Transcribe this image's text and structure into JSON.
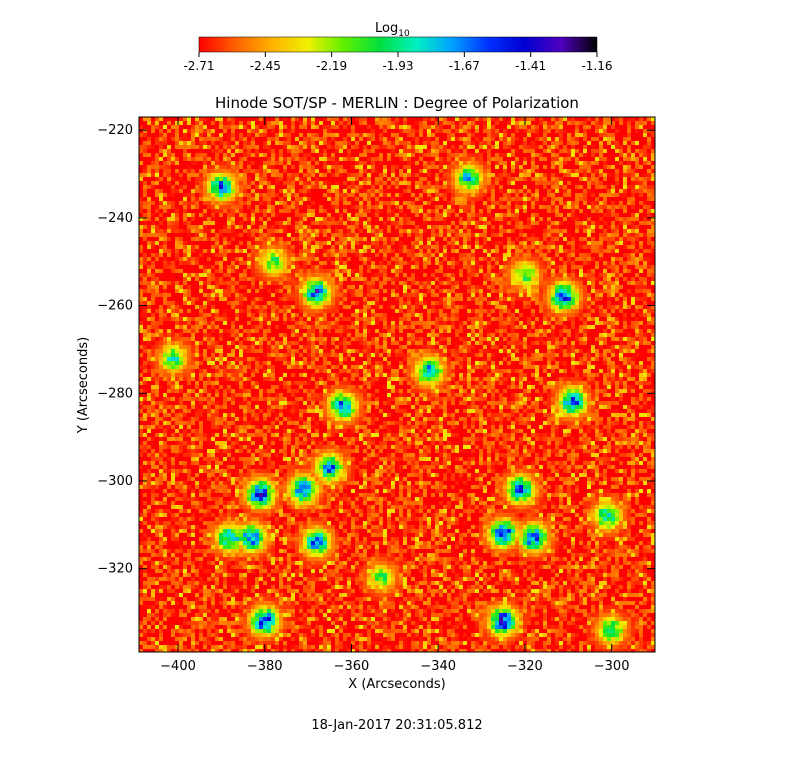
{
  "chart_data": {
    "type": "heatmap",
    "title": "Hinode SOT/SP - MERLIN : Degree of Polarization",
    "xlabel": "X (Arcseconds)",
    "ylabel": "Y (Arcseconds)",
    "xlim": [
      -409,
      -290
    ],
    "ylim": [
      -339,
      -217
    ],
    "x_ticks": [
      -400,
      -380,
      -360,
      -340,
      -320,
      -300
    ],
    "y_ticks": [
      -220,
      -240,
      -260,
      -280,
      -300,
      -320
    ],
    "colorbar": {
      "label_main": "Log",
      "label_sub": "10",
      "range": [
        -2.71,
        -1.16
      ],
      "ticks": [
        "-2.71",
        "-2.45",
        "-2.19",
        "-1.93",
        "-1.67",
        "-1.41",
        "-1.16"
      ],
      "palette": [
        "#ff0000",
        "#ff6000",
        "#ffb000",
        "#f0f000",
        "#60f000",
        "#00e040",
        "#00f0c0",
        "#00a0ff",
        "#0030ff",
        "#0000d0",
        "#5000c0",
        "#000000"
      ]
    },
    "background_log_value": -2.68,
    "enhancement_regions": [
      {
        "x": -390,
        "y": -233,
        "peak": -1.55
      },
      {
        "x": -333,
        "y": -231,
        "peak": -1.75
      },
      {
        "x": -378,
        "y": -250,
        "peak": -1.95
      },
      {
        "x": -368,
        "y": -257,
        "peak": -1.45
      },
      {
        "x": -320,
        "y": -253,
        "peak": -1.95
      },
      {
        "x": -311,
        "y": -258,
        "peak": -1.45
      },
      {
        "x": -401,
        "y": -272,
        "peak": -1.85
      },
      {
        "x": -342,
        "y": -275,
        "peak": -1.62
      },
      {
        "x": -362,
        "y": -283,
        "peak": -1.55
      },
      {
        "x": -309,
        "y": -282,
        "peak": -1.5
      },
      {
        "x": -365,
        "y": -297,
        "peak": -1.55
      },
      {
        "x": -381,
        "y": -303,
        "peak": -1.35
      },
      {
        "x": -371,
        "y": -302,
        "peak": -1.45
      },
      {
        "x": -321,
        "y": -302,
        "peak": -1.5
      },
      {
        "x": -318,
        "y": -313,
        "peak": -1.45
      },
      {
        "x": -383,
        "y": -313,
        "peak": -1.45
      },
      {
        "x": -325,
        "y": -312,
        "peak": -1.35
      },
      {
        "x": -388,
        "y": -313,
        "peak": -1.6
      },
      {
        "x": -368,
        "y": -314,
        "peak": -1.55
      },
      {
        "x": -301,
        "y": -308,
        "peak": -1.75
      },
      {
        "x": -380,
        "y": -332,
        "peak": -1.4
      },
      {
        "x": -325,
        "y": -332,
        "peak": -1.35
      },
      {
        "x": -300,
        "y": -334,
        "peak": -1.85
      },
      {
        "x": -353,
        "y": -322,
        "peak": -2.0
      }
    ],
    "grid": false,
    "legend": "colorbar-top",
    "timestamp": "18-Jan-2017 20:31:05.812"
  }
}
